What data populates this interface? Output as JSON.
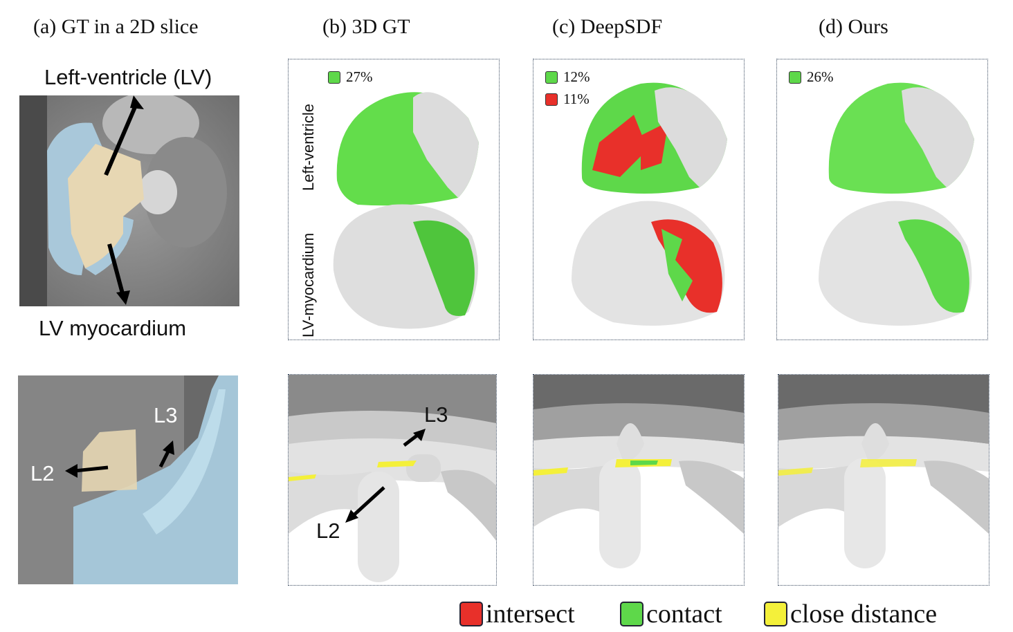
{
  "columns": {
    "a": "(a) GT in a 2D slice",
    "b": "(b) 3D GT",
    "c": "(c) DeepSDF",
    "d": "(d) Ours"
  },
  "slice_labels": {
    "left_ventricle": "Left-ventricle (LV)",
    "lv_myocardium": "LV myocardium",
    "l2": "L2",
    "l3": "L3"
  },
  "row_labels": {
    "left_ventricle": "Left-ventricle",
    "lv_myocardium": "LV-myocardium"
  },
  "percentages": {
    "gt_contact": "27%",
    "deepsdf_contact": "12%",
    "deepsdf_intersect": "11%",
    "ours_contact": "26%"
  },
  "spine_labels": {
    "l2": "L2",
    "l3": "L3"
  },
  "legend": [
    {
      "label": "intersect",
      "color": "#e8302a"
    },
    {
      "label": "contact",
      "color": "#5ed84a"
    },
    {
      "label": "close distance",
      "color": "#f4f03a"
    }
  ],
  "colors": {
    "intersect": "#e8302a",
    "contact": "#5ed84a",
    "close": "#f4f03a",
    "lv_overlay": "#a9c8da",
    "myo_overlay": "#e7d7b3"
  }
}
